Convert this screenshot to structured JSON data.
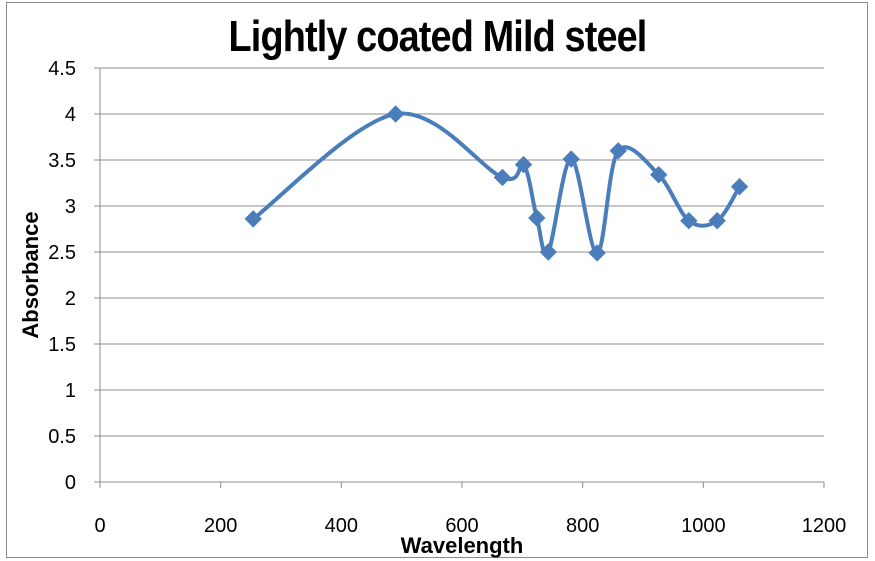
{
  "chart_data": {
    "type": "line",
    "title": "Lightly coated Mild steel",
    "xlabel": "Wavelength",
    "ylabel": "Absorbance",
    "xlim": [
      0,
      1200
    ],
    "ylim": [
      0,
      4.5
    ],
    "x_ticks": [
      0,
      200,
      400,
      600,
      800,
      1000,
      1200
    ],
    "y_ticks": [
      0,
      0.5,
      1,
      1.5,
      2,
      2.5,
      3,
      3.5,
      4,
      4.5
    ],
    "x_tick_labels": [
      "0",
      "200",
      "400",
      "600",
      "800",
      "1000",
      "1200"
    ],
    "y_tick_labels": [
      "0",
      "0.5",
      "1",
      "1.5",
      "2",
      "2.5",
      "3",
      "3.5",
      "4",
      "4.5"
    ],
    "grid": "horizontal",
    "legend": "none",
    "line_style": "smooth",
    "marker": "diamond",
    "series_color": "#4a7ebb",
    "series": [
      {
        "x": [
          254,
          490,
          667,
          702,
          724,
          743,
          781,
          824,
          859,
          926,
          976,
          1023,
          1060
        ],
        "values": [
          2.86,
          4.0,
          3.31,
          3.45,
          2.87,
          2.5,
          3.51,
          2.49,
          3.6,
          3.34,
          2.84,
          2.84,
          3.21
        ]
      }
    ]
  }
}
